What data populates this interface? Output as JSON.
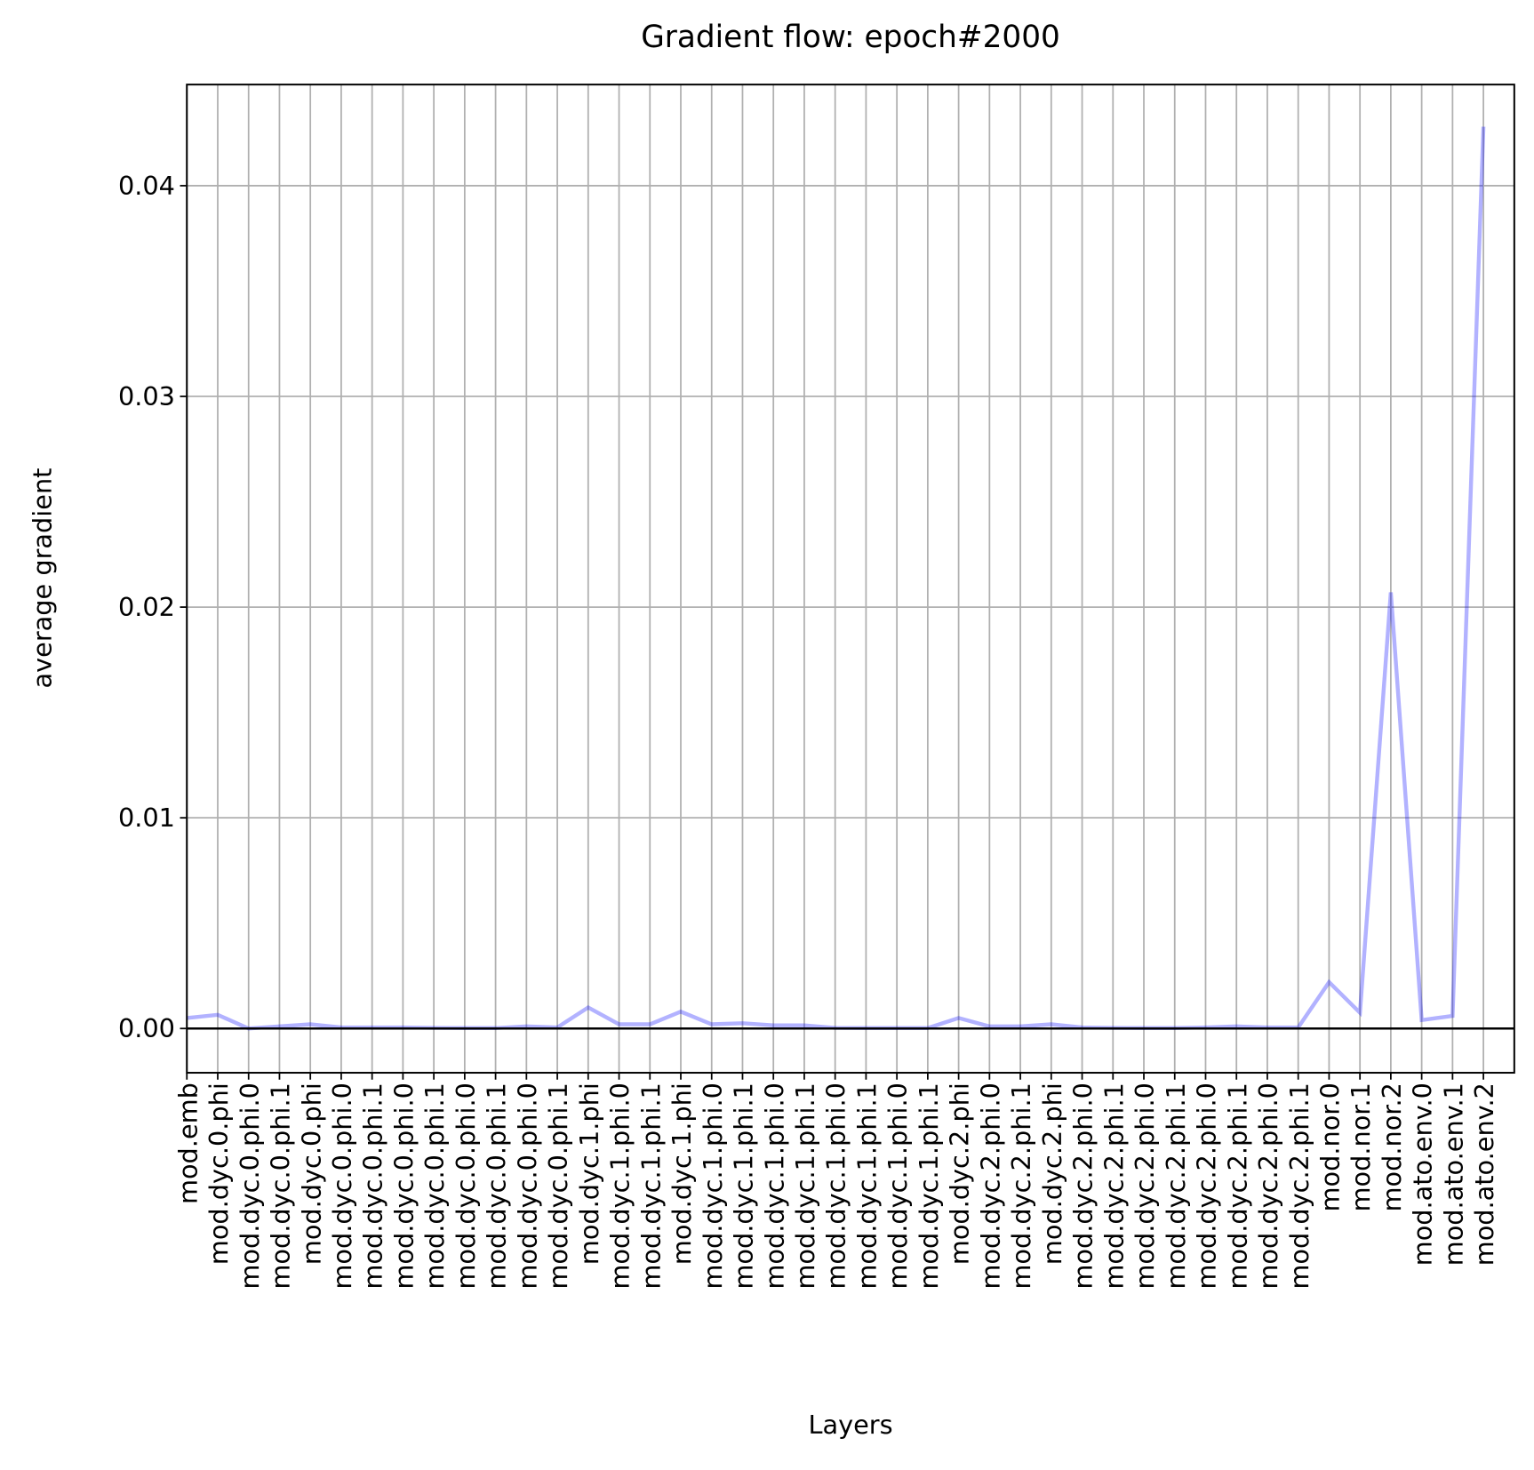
{
  "chart_data": {
    "type": "line",
    "title": "Gradient flow: epoch#2000",
    "xlabel": "Layers",
    "ylabel": "average gradient",
    "categories": [
      "mod.emb",
      "mod.dyc.0.phi",
      "mod.dyc.0.phi.0",
      "mod.dyc.0.phi.1",
      "mod.dyc.0.phi",
      "mod.dyc.0.phi.0",
      "mod.dyc.0.phi.1",
      "mod.dyc.0.phi.0",
      "mod.dyc.0.phi.1",
      "mod.dyc.0.phi.0",
      "mod.dyc.0.phi.1",
      "mod.dyc.0.phi.0",
      "mod.dyc.0.phi.1",
      "mod.dyc.1.phi",
      "mod.dyc.1.phi.0",
      "mod.dyc.1.phi.1",
      "mod.dyc.1.phi",
      "mod.dyc.1.phi.0",
      "mod.dyc.1.phi.1",
      "mod.dyc.1.phi.0",
      "mod.dyc.1.phi.1",
      "mod.dyc.1.phi.0",
      "mod.dyc.1.phi.1",
      "mod.dyc.1.phi.0",
      "mod.dyc.1.phi.1",
      "mod.dyc.2.phi",
      "mod.dyc.2.phi.0",
      "mod.dyc.2.phi.1",
      "mod.dyc.2.phi",
      "mod.dyc.2.phi.0",
      "mod.dyc.2.phi.1",
      "mod.dyc.2.phi.0",
      "mod.dyc.2.phi.1",
      "mod.dyc.2.phi.0",
      "mod.dyc.2.phi.1",
      "mod.dyc.2.phi.0",
      "mod.dyc.2.phi.1",
      "mod.nor.0",
      "mod.nor.1",
      "mod.nor.2",
      "mod.ato.env.0",
      "mod.ato.env.1",
      "mod.ato.env.2"
    ],
    "values": [
      0.0005,
      0.00065,
      0.0,
      0.0001,
      0.0002,
      5e-05,
      5e-05,
      5e-05,
      3e-05,
      2e-05,
      2e-05,
      0.0001,
      5e-05,
      0.001,
      0.0002,
      0.0002,
      0.0008,
      0.0002,
      0.00025,
      0.00015,
      0.00015,
      3e-05,
      2e-05,
      2e-05,
      2e-05,
      0.0005,
      0.0001,
      0.0001,
      0.0002,
      5e-05,
      3e-05,
      2e-05,
      2e-05,
      5e-05,
      0.0001,
      5e-05,
      5e-05,
      0.0022,
      0.00075,
      0.0207,
      0.0004,
      0.0006,
      0.0428
    ],
    "color": "#0000ff",
    "xlim": [
      0,
      43
    ],
    "ylim": [
      -0.0021,
      0.0448
    ],
    "yticks": [
      {
        "value": 0,
        "label": "0.00"
      },
      {
        "value": 0.01,
        "label": "0.01"
      },
      {
        "value": 0.02,
        "label": "0.02"
      },
      {
        "value": 0.03,
        "label": "0.03"
      },
      {
        "value": 0.04,
        "label": "0.04"
      }
    ],
    "grid": true
  }
}
